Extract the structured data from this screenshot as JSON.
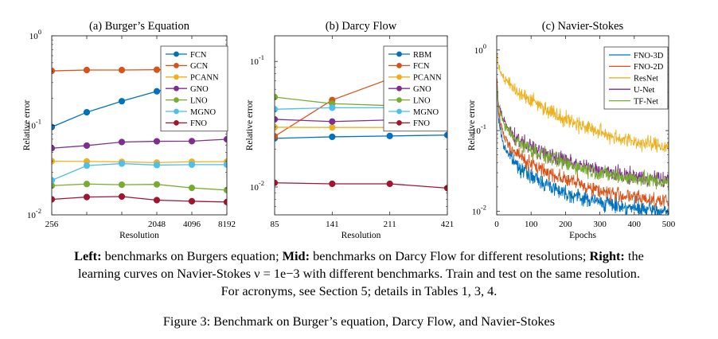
{
  "chart_data": [
    {
      "type": "line",
      "title": "(a) Burger’s Equation",
      "xlabel": "Resolution",
      "ylabel": "Relative error",
      "yscale": "log",
      "ylim": [
        0.01,
        1
      ],
      "xlim": [
        256,
        8192
      ],
      "x_ticks": [
        256,
        512,
        1024,
        2048,
        4096,
        8192
      ],
      "x_tick_labels": [
        "256",
        "",
        "",
        "2048",
        "4096",
        "8192"
      ],
      "y_ticks": [
        0.01,
        0.1,
        1
      ],
      "y_tick_labels": [
        {
          "base": "10",
          "exp": "-2"
        },
        {
          "base": "10",
          "exp": "-1"
        },
        {
          "base": "10",
          "exp": "0"
        }
      ],
      "legend": "top-right",
      "grid": false,
      "series": [
        {
          "name": "FCN",
          "color": "#0072BD",
          "x": [
            256,
            512,
            1024,
            2048,
            4096,
            8192
          ],
          "values": [
            0.0958,
            0.14,
            0.186,
            0.24,
            0.301,
            0.326
          ]
        },
        {
          "name": "GCN",
          "color": "#D95319",
          "x": [
            256,
            512,
            1024,
            2048,
            4096,
            8192
          ],
          "values": [
            0.406,
            0.415,
            0.415,
            0.418,
            0.418,
            0.42
          ]
        },
        {
          "name": "PCANN",
          "color": "#EDB120",
          "x": [
            256,
            512,
            1024,
            2048,
            4096,
            8192
          ],
          "values": [
            0.0398,
            0.0395,
            0.0391,
            0.0383,
            0.0392,
            0.0393
          ]
        },
        {
          "name": "GNO",
          "color": "#7E2F8E",
          "x": [
            256,
            512,
            1024,
            2048,
            4096,
            8192
          ],
          "values": [
            0.0555,
            0.0594,
            0.0651,
            0.0663,
            0.0666,
            0.0699
          ]
        },
        {
          "name": "LNO",
          "color": "#77AC30",
          "x": [
            256,
            512,
            1024,
            2048,
            4096,
            8192
          ],
          "values": [
            0.0212,
            0.0221,
            0.0217,
            0.0219,
            0.02,
            0.0189
          ]
        },
        {
          "name": "MGNO",
          "color": "#4DBEEE",
          "x": [
            256,
            512,
            1024,
            2048,
            4096,
            8192
          ],
          "values": [
            0.0243,
            0.0355,
            0.0374,
            0.036,
            0.0364,
            0.0364
          ]
        },
        {
          "name": "FNO",
          "color": "#A2142F",
          "x": [
            256,
            512,
            1024,
            2048,
            4096,
            8192
          ],
          "values": [
            0.0149,
            0.0158,
            0.016,
            0.0146,
            0.0142,
            0.0139
          ]
        }
      ]
    },
    {
      "type": "line",
      "title": "(b) Darcy Flow",
      "xlabel": "Resolution",
      "ylabel": "Relative error",
      "yscale": "log",
      "ylim": [
        0.006,
        0.16
      ],
      "xlim": [
        85,
        421
      ],
      "x_ticks": [
        85,
        141,
        211,
        421
      ],
      "x_tick_labels": [
        "85",
        "141",
        "211",
        "421"
      ],
      "y_ticks": [
        0.01,
        0.1
      ],
      "y_tick_labels": [
        {
          "base": "10",
          "exp": "-2"
        },
        {
          "base": "10",
          "exp": "-1"
        }
      ],
      "legend": "top-right",
      "grid": false,
      "series": [
        {
          "name": "RBM",
          "color": "#0072BD",
          "x": [
            85,
            141,
            211,
            421
          ],
          "values": [
            0.0244,
            0.0251,
            0.0255,
            0.0259
          ]
        },
        {
          "name": "FCN",
          "color": "#D95319",
          "x": [
            85,
            141,
            211,
            421
          ],
          "values": [
            0.0253,
            0.0493,
            0.0727,
            0.1097
          ]
        },
        {
          "name": "PCANN",
          "color": "#EDB120",
          "x": [
            85,
            141,
            211,
            421
          ],
          "values": [
            0.0299,
            0.0298,
            0.0298,
            0.0299
          ]
        },
        {
          "name": "GNO",
          "color": "#7E2F8E",
          "x": [
            85,
            141,
            211,
            421
          ],
          "values": [
            0.0346,
            0.0332,
            0.0342,
            0.0369
          ]
        },
        {
          "name": "LNO",
          "color": "#77AC30",
          "x": [
            85,
            141,
            211,
            421
          ],
          "values": [
            0.052,
            0.0461,
            0.0445,
            0.04
          ]
        },
        {
          "name": "MGNO",
          "color": "#4DBEEE",
          "x": [
            85,
            141,
            211,
            421
          ],
          "values": [
            0.0416,
            0.0428,
            0.0428,
            0.042
          ]
        },
        {
          "name": "FNO",
          "color": "#A2142F",
          "x": [
            85,
            141,
            211,
            421
          ],
          "values": [
            0.0108,
            0.0106,
            0.0106,
            0.0098
          ]
        }
      ]
    },
    {
      "type": "line",
      "title": "(c) Navier-Stokes",
      "xlabel": "Epochs",
      "ylabel": "Relative error",
      "yscale": "log",
      "ylim": [
        0.009,
        1.5
      ],
      "xlim": [
        0,
        500
      ],
      "x_ticks": [
        0,
        100,
        200,
        300,
        400,
        500
      ],
      "x_tick_labels": [
        "0",
        "100",
        "200",
        "300",
        "400",
        "500"
      ],
      "y_ticks": [
        0.01,
        0.1,
        1
      ],
      "y_tick_labels": [
        {
          "base": "10",
          "exp": "-2"
        },
        {
          "base": "10",
          "exp": "-1"
        },
        {
          "base": "10",
          "exp": "0"
        }
      ],
      "legend": "top-right",
      "grid": false,
      "noise_note": "curves are noisy learning curves; values below are the smoothed trend sampled at the given epochs",
      "series": [
        {
          "name": "FNO-3D",
          "color": "#0072BD",
          "x": [
            0,
            5,
            20,
            50,
            100,
            150,
            200,
            250,
            300,
            350,
            400,
            450,
            500
          ],
          "values": [
            0.45,
            0.14,
            0.065,
            0.041,
            0.027,
            0.021,
            0.017,
            0.0145,
            0.013,
            0.0118,
            0.0108,
            0.0102,
            0.0098
          ]
        },
        {
          "name": "FNO-2D",
          "color": "#D95319",
          "x": [
            0,
            5,
            20,
            50,
            100,
            150,
            200,
            250,
            300,
            350,
            400,
            450,
            500
          ],
          "values": [
            0.5,
            0.17,
            0.085,
            0.055,
            0.038,
            0.03,
            0.025,
            0.021,
            0.018,
            0.016,
            0.0148,
            0.014,
            0.0132
          ]
        },
        {
          "name": "ResNet",
          "color": "#EDB120",
          "x": [
            0,
            5,
            20,
            50,
            100,
            150,
            200,
            250,
            300,
            350,
            400,
            450,
            500
          ],
          "values": [
            0.9,
            0.62,
            0.45,
            0.33,
            0.24,
            0.18,
            0.14,
            0.115,
            0.095,
            0.082,
            0.073,
            0.067,
            0.063
          ]
        },
        {
          "name": "U-Net",
          "color": "#7E2F8E",
          "x": [
            0,
            5,
            20,
            50,
            100,
            150,
            200,
            250,
            300,
            350,
            400,
            450,
            500
          ],
          "values": [
            0.42,
            0.22,
            0.13,
            0.085,
            0.062,
            0.05,
            0.042,
            0.036,
            0.032,
            0.029,
            0.027,
            0.0255,
            0.024
          ]
        },
        {
          "name": "TF-Net",
          "color": "#77AC30",
          "x": [
            0,
            5,
            20,
            50,
            100,
            150,
            200,
            250,
            300,
            350,
            400,
            450,
            500
          ],
          "values": [
            0.4,
            0.21,
            0.12,
            0.08,
            0.058,
            0.047,
            0.039,
            0.034,
            0.03,
            0.027,
            0.0255,
            0.024,
            0.0225
          ]
        }
      ]
    }
  ],
  "caption": {
    "line1": [
      {
        "text": "Left:",
        "bold": true
      },
      {
        "text": " benchmarks on Burgers equation; ",
        "bold": false
      },
      {
        "text": "Mid:",
        "bold": true
      },
      {
        "text": " benchmarks on Darcy Flow for different resolutions; ",
        "bold": false
      },
      {
        "text": "Right:",
        "bold": true
      },
      {
        "text": " the",
        "bold": false
      }
    ],
    "line2": "learning curves on Navier-Stokes ν = 1e−3 with different benchmarks. Train and test on the same resolution.",
    "line3": "For acronyms, see Section 5; details in Tables 1, 3, 4."
  },
  "figure_title": "Figure 3: Benchmark on Burger’s equation, Darcy Flow, and Navier-Stokes"
}
